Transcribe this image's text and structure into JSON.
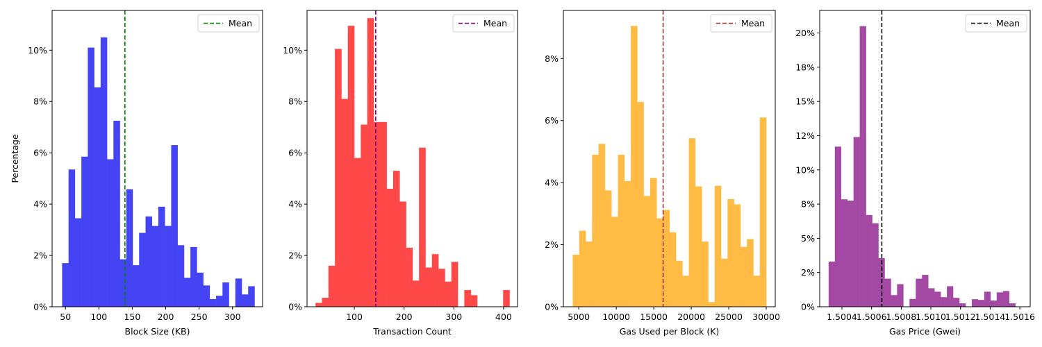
{
  "chart_data": [
    {
      "type": "histogram",
      "xlabel": "Block Size (KB)",
      "ylabel": "Percentage",
      "xlim": [
        30,
        345
      ],
      "ylim": [
        0,
        0.1155
      ],
      "xticks": [
        50,
        100,
        150,
        200,
        250,
        300
      ],
      "xtick_labels": [
        "50",
        "100",
        "150",
        "200",
        "250",
        "300"
      ],
      "yticks": [
        0,
        0.02,
        0.04,
        0.06,
        0.08,
        0.1
      ],
      "ytick_labels": [
        "0%",
        "2%",
        "4%",
        "6%",
        "8%",
        "10%"
      ],
      "bar_color": "#4444f5",
      "mean": 139,
      "mean_color": "#008000",
      "legend": {
        "label": "Mean",
        "placement": "top-right"
      },
      "bin_edges": [
        45,
        54.6,
        64.2,
        73.8,
        83.4,
        93,
        102.6,
        112.2,
        121.8,
        131.4,
        141,
        150.6,
        160.2,
        169.8,
        179.4,
        189,
        198.6,
        208.2,
        217.8,
        227.4,
        237,
        246.6,
        256.2,
        265.8,
        275.4,
        285,
        294.6,
        304.2,
        313.8,
        323.4,
        333
      ],
      "values": [
        0.017,
        0.0535,
        0.0345,
        0.0585,
        0.101,
        0.0855,
        0.105,
        0.0575,
        0.0725,
        0.0185,
        0.0458,
        0.0162,
        0.0288,
        0.0352,
        0.0315,
        0.039,
        0.0315,
        0.063,
        0.024,
        0.0113,
        0.0233,
        0.0133,
        0.0083,
        0.003,
        0.0043,
        0.0095,
        0,
        0.011,
        0.0048,
        0.008
      ]
    },
    {
      "type": "histogram",
      "xlabel": "Transaction Count",
      "ylabel": "",
      "xlim": [
        5,
        428
      ],
      "ylim": [
        0,
        0.1155
      ],
      "xticks": [
        100,
        200,
        300,
        400
      ],
      "xtick_labels": [
        "100",
        "200",
        "300",
        "400"
      ],
      "yticks": [
        0,
        0.02,
        0.04,
        0.06,
        0.08,
        0.1
      ],
      "ytick_labels": [
        "0%",
        "2%",
        "4%",
        "6%",
        "8%",
        "10%"
      ],
      "bar_color": "#ff4949",
      "mean": 143,
      "mean_color": "#800080",
      "legend": {
        "label": "Mean",
        "placement": "top-right"
      },
      "bin_edges": [
        22,
        35,
        48,
        61,
        74,
        87,
        100,
        113,
        126,
        139,
        152,
        165,
        178,
        191,
        204,
        217,
        230,
        243,
        256,
        269,
        282,
        295,
        308,
        321,
        334,
        347,
        360,
        373,
        386,
        399,
        412
      ],
      "values": [
        0.0015,
        0.0035,
        0.016,
        0.1005,
        0.081,
        0.1095,
        0.058,
        0.071,
        0.1125,
        0.072,
        0.072,
        0.046,
        0.053,
        0.041,
        0.023,
        0.0102,
        0.062,
        0.0153,
        0.0205,
        0.0148,
        0.0098,
        0.0175,
        0,
        0.0065,
        0.0045,
        0,
        0,
        0,
        0,
        0.0065
      ]
    },
    {
      "type": "histogram",
      "xlabel": "Gas Used per Block (K)",
      "ylabel": "",
      "xlim": [
        2950,
        31200
      ],
      "ylim": [
        0,
        0.0955
      ],
      "xticks": [
        5000,
        10000,
        15000,
        20000,
        25000,
        30000
      ],
      "xtick_labels": [
        "5000",
        "10000",
        "15000",
        "20000",
        "25000",
        "30000"
      ],
      "yticks": [
        0,
        0.02,
        0.04,
        0.06,
        0.08
      ],
      "ytick_labels": [
        "0%",
        "2%",
        "4%",
        "6%",
        "8%"
      ],
      "bar_color": "#ffbb44",
      "mean": 16250,
      "mean_color": "#a52a2a",
      "legend": {
        "label": "Mean",
        "placement": "top-right"
      },
      "bin_edges": [
        4200,
        5060,
        5920,
        6780,
        7640,
        8500,
        9360,
        10220,
        11080,
        11940,
        12800,
        13660,
        14520,
        15380,
        16240,
        17100,
        17960,
        18820,
        19680,
        20540,
        21400,
        22260,
        23120,
        23980,
        24840,
        25700,
        26560,
        27420,
        28280,
        29140,
        30000
      ],
      "values": [
        0.0168,
        0.0245,
        0.021,
        0.049,
        0.0525,
        0.0375,
        0.029,
        0.049,
        0.0405,
        0.0905,
        0.066,
        0.0357,
        0.0415,
        0.0285,
        0.0312,
        0.024,
        0.0148,
        0.01,
        0.0543,
        0.0388,
        0.021,
        0.0015,
        0.039,
        0.0155,
        0.0347,
        0.033,
        0.0193,
        0.0218,
        0.01,
        0.061
      ]
    },
    {
      "type": "histogram",
      "xlabel": "Gas Price (Gwei)",
      "ylabel": "",
      "xlim": [
        1.50025,
        1.50167
      ],
      "ylim": [
        0,
        0.2165
      ],
      "xticks": [
        1.5004,
        1.5006,
        1.5008,
        1.501,
        1.5012,
        1.5014,
        1.5016
      ],
      "xtick_labels": [
        "1.5004",
        "1.5006",
        "1.5008",
        "1.5010",
        "1.5012",
        "1.5014",
        "1.5016"
      ],
      "yticks": [
        0,
        0.025,
        0.05,
        0.075,
        0.1,
        0.125,
        0.15,
        0.175,
        0.2
      ],
      "ytick_labels": [
        "0%",
        "2%",
        "5%",
        "8%",
        "10%",
        "12%",
        "15%",
        "18%",
        "20%"
      ],
      "bar_color": "#a349a4",
      "mean": 1.500669,
      "mean_color": "#000000",
      "legend": {
        "label": "Mean",
        "placement": "top-right"
      },
      "bin_edges": [
        1.50031,
        1.500352,
        1.500394,
        1.500436,
        1.500478,
        1.50052,
        1.500562,
        1.500604,
        1.500646,
        1.500688,
        1.50073,
        1.500772,
        1.500814,
        1.500856,
        1.500898,
        1.50094,
        1.500982,
        1.501024,
        1.501066,
        1.501108,
        1.50115,
        1.501192,
        1.501234,
        1.501276,
        1.501318,
        1.50136,
        1.501402,
        1.501444,
        1.501486,
        1.501528,
        1.50157
      ],
      "values": [
        0.033,
        0.117,
        0.0785,
        0.0775,
        0.124,
        0.205,
        0.067,
        0.061,
        0.0355,
        0.0205,
        0.0085,
        0.0165,
        0,
        0.0057,
        0.0205,
        0.0233,
        0.0135,
        0.011,
        0.007,
        0.015,
        0.0065,
        0.0025,
        0,
        0.0055,
        0.005,
        0.011,
        0.0045,
        0.0105,
        0.0115,
        0.0025
      ]
    }
  ]
}
